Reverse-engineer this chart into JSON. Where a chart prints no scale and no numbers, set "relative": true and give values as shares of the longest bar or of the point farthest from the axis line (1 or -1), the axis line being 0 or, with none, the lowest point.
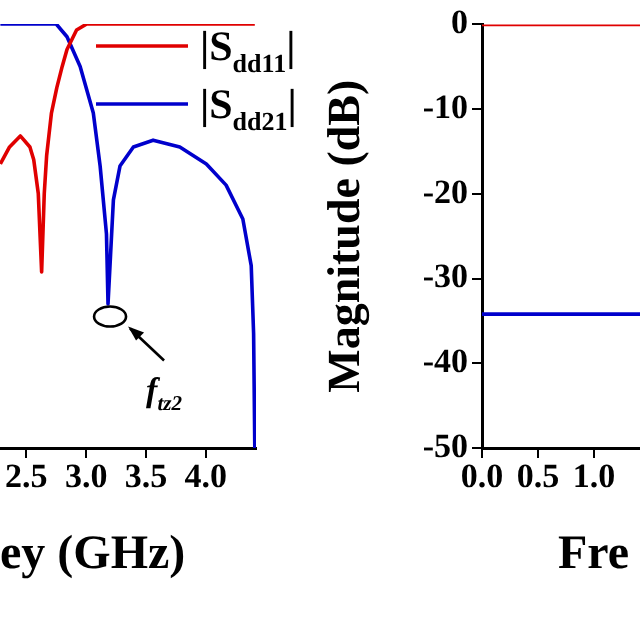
{
  "chart_data": [
    {
      "type": "line",
      "xlabel": "ey (GHz)",
      "relative": true,
      "xlim": [
        2.28,
        4.42
      ],
      "xticks": [
        2.5,
        {
          "value": 3,
          "label": "3.0"
        },
        3.5,
        {
          "value": 4,
          "label": "4.0"
        }
      ],
      "tick_labels": "x",
      "legend": "top right",
      "annotations": [
        {
          "text": "f$_{tz2}$",
          "x": 3.2,
          "y": 0.31
        }
      ],
      "series": [
        {
          "name": "|S$_{dd11}$|",
          "color": "#e00000",
          "x": [
            2.283,
            2.36,
            2.45,
            2.53,
            2.562,
            2.6,
            2.628,
            2.65,
            2.67,
            2.71,
            2.755,
            2.8,
            2.84,
            2.92,
            3.005,
            4.41
          ],
          "values": [
            0.67,
            0.71,
            0.736,
            0.71,
            0.68,
            0.6,
            0.415,
            0.6,
            0.69,
            0.79,
            0.85,
            0.9,
            0.94,
            0.986,
            1,
            1
          ]
        },
        {
          "name": "|S$_{dd21}$|",
          "color": "#0000cc",
          "x": [
            2.283,
            2.75,
            2.84,
            2.95,
            3.06,
            3.117,
            3.17,
            3.183,
            3.228,
            3.283,
            3.395,
            3.56,
            3.783,
            4.005,
            4.17,
            4.31,
            4.38,
            4.4,
            4.41
          ],
          "values": [
            1,
            1,
            0.97,
            0.9,
            0.79,
            0.665,
            0.505,
            0.34,
            0.585,
            0.665,
            0.71,
            0.726,
            0.71,
            0.67,
            0.62,
            0.54,
            0.43,
            0.27,
            0
          ]
        }
      ]
    },
    {
      "type": "line",
      "xlabel": "Fre",
      "ylabel": "Magnitude (dB)",
      "xlim": [
        0,
        1.41
      ],
      "xticks": [
        {
          "value": 0,
          "label": "0.0"
        },
        {
          "value": 0.5,
          "label": "0.5"
        },
        {
          "value": 1,
          "label": "1.0"
        }
      ],
      "ylim": [
        -50,
        0
      ],
      "yticks": [
        0,
        -10,
        -20,
        -30,
        -40,
        -50
      ],
      "series": [
        {
          "color": "#e00000",
          "x": [
            0,
            1.41
          ],
          "values": [
            0,
            0
          ]
        },
        {
          "color": "#0000cc",
          "x": [
            0,
            1.41
          ],
          "values": [
            -34.2,
            -34.2
          ]
        }
      ]
    }
  ]
}
